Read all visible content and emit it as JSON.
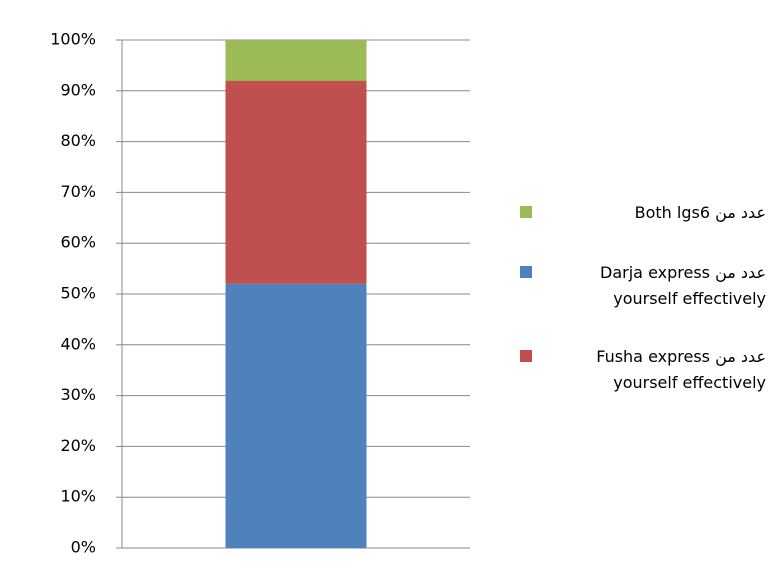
{
  "chart_data": {
    "type": "stacked_bar",
    "categories": [
      null
    ],
    "series": [
      {
        "name": "عدد من Darja express yourself effectively",
        "color": "#4f81bd",
        "values": [
          52
        ]
      },
      {
        "name": "عدد من Fusha express yourself effectively",
        "color": "#c0504d",
        "values": [
          40
        ]
      },
      {
        "name": "عدد من Both lgs6",
        "color": "#9bbb59",
        "values": [
          8
        ]
      }
    ],
    "ylim": [
      0,
      100
    ],
    "yticks": [
      {
        "value": 0,
        "label": "0%"
      },
      {
        "value": 10,
        "label": "10%"
      },
      {
        "value": 20,
        "label": "20%"
      },
      {
        "value": 30,
        "label": "30%"
      },
      {
        "value": 40,
        "label": "40%"
      },
      {
        "value": 50,
        "label": "50%"
      },
      {
        "value": 60,
        "label": "60%"
      },
      {
        "value": 70,
        "label": "70%"
      },
      {
        "value": 80,
        "label": "80%"
      },
      {
        "value": 90,
        "label": "90%"
      },
      {
        "value": 100,
        "label": "100%"
      }
    ],
    "grid": true,
    "legend": "right"
  }
}
